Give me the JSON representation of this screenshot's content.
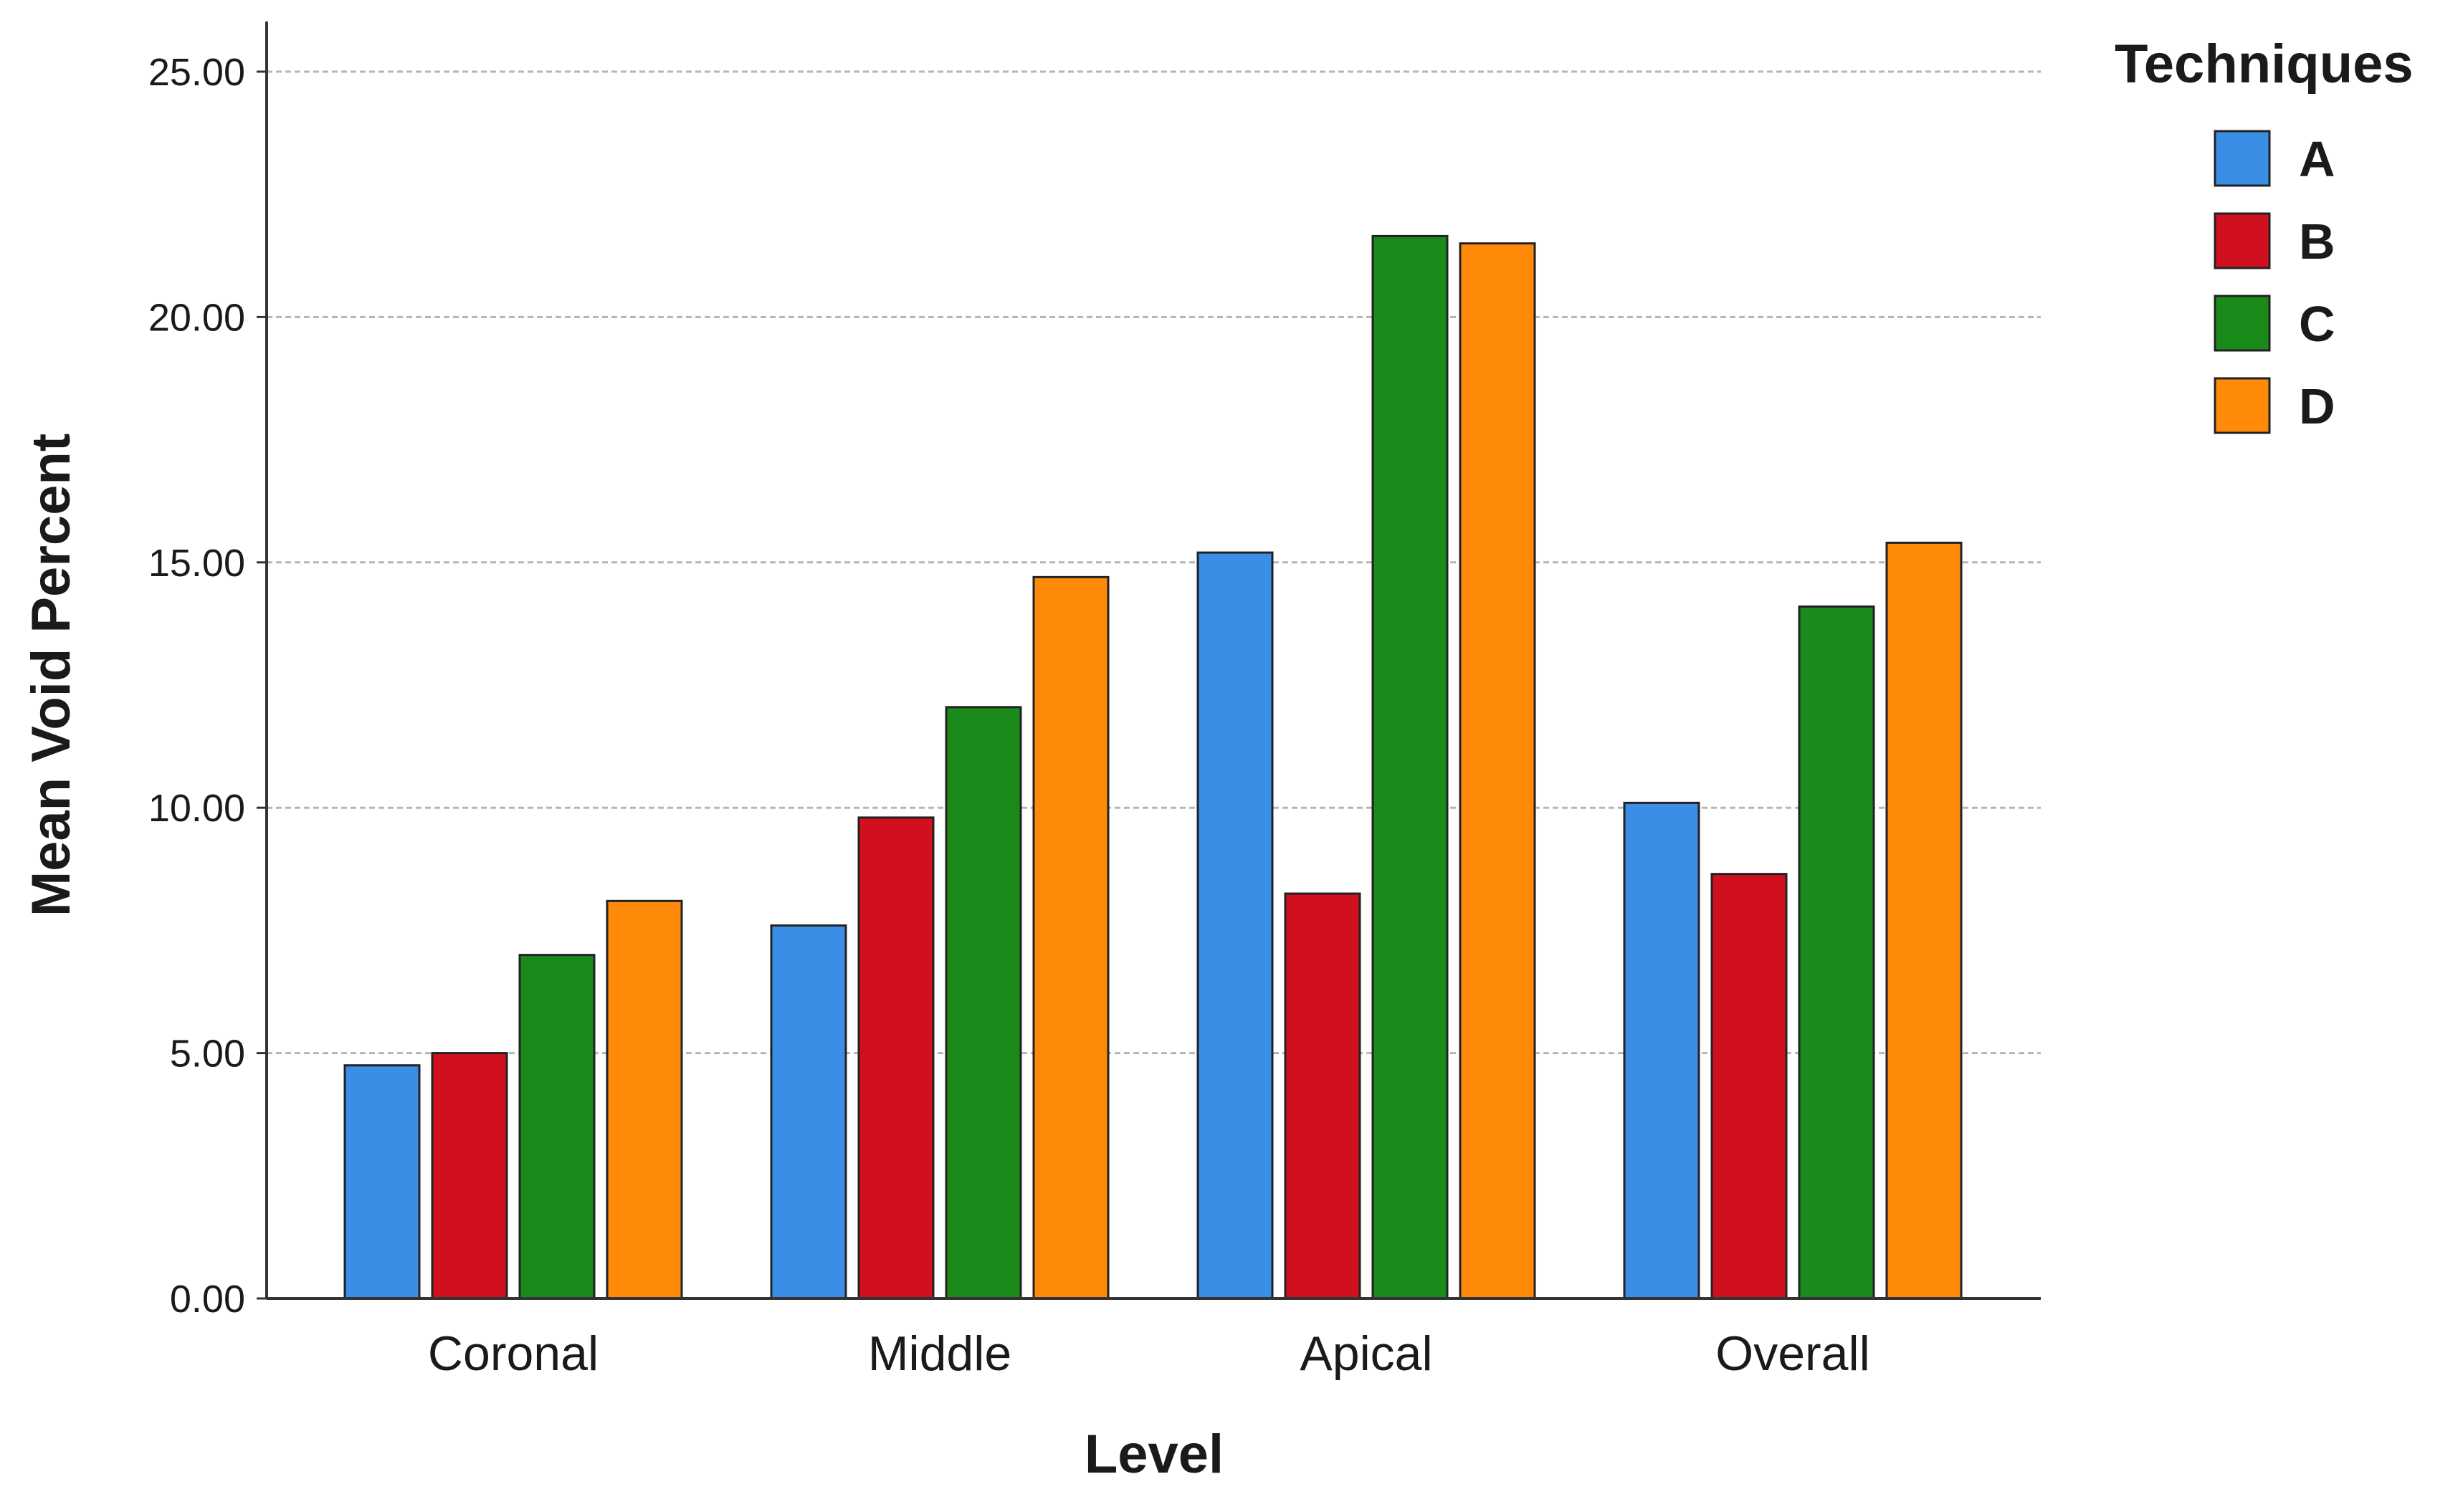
{
  "chart_data": {
    "type": "bar",
    "xlabel": "Level",
    "ylabel": "Mean Void Percent",
    "categories": [
      "Coronal",
      "Middle",
      "Apical",
      "Overall"
    ],
    "series": [
      {
        "name": "A",
        "color": "#3a8ee6",
        "values": [
          4.75,
          7.6,
          15.2,
          10.1
        ]
      },
      {
        "name": "B",
        "color": "#d0101e",
        "values": [
          5.0,
          9.8,
          8.25,
          8.65
        ]
      },
      {
        "name": "C",
        "color": "#1a8a1a",
        "values": [
          7.0,
          12.05,
          21.65,
          14.1
        ]
      },
      {
        "name": "D",
        "color": "#ff8a0a",
        "values": [
          8.1,
          14.7,
          21.5,
          15.4
        ]
      }
    ],
    "ylim": [
      0,
      25
    ],
    "yticks": [
      0,
      5,
      10,
      15,
      20,
      25
    ],
    "ytick_labels": [
      "0.00",
      "5.00",
      "10.00",
      "15.00",
      "20.00",
      "25.00"
    ],
    "grid": true,
    "legend": {
      "title": "Techniques",
      "position": "top-right"
    }
  }
}
